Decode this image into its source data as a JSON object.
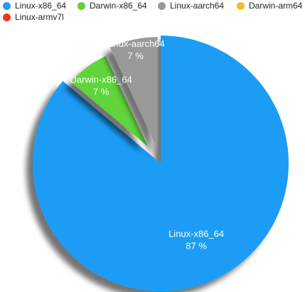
{
  "chart_data": {
    "type": "pie",
    "title": "",
    "legend_position": "top",
    "series": [
      {
        "name": "Linux-x86_64",
        "value": 87,
        "label": "87 %",
        "color": "#1f9cf5"
      },
      {
        "name": "Darwin-x86_64",
        "value": 7,
        "label": "7 %",
        "color": "#5fd43a"
      },
      {
        "name": "Linux-aarch64",
        "value": 7,
        "label": "7 %",
        "color": "#999999"
      },
      {
        "name": "Darwin-arm64",
        "value": 0,
        "label": "",
        "color": "#f5bd1f"
      },
      {
        "name": "Linux-armv7l",
        "value": 0,
        "label": "",
        "color": "#f5341a"
      }
    ]
  }
}
